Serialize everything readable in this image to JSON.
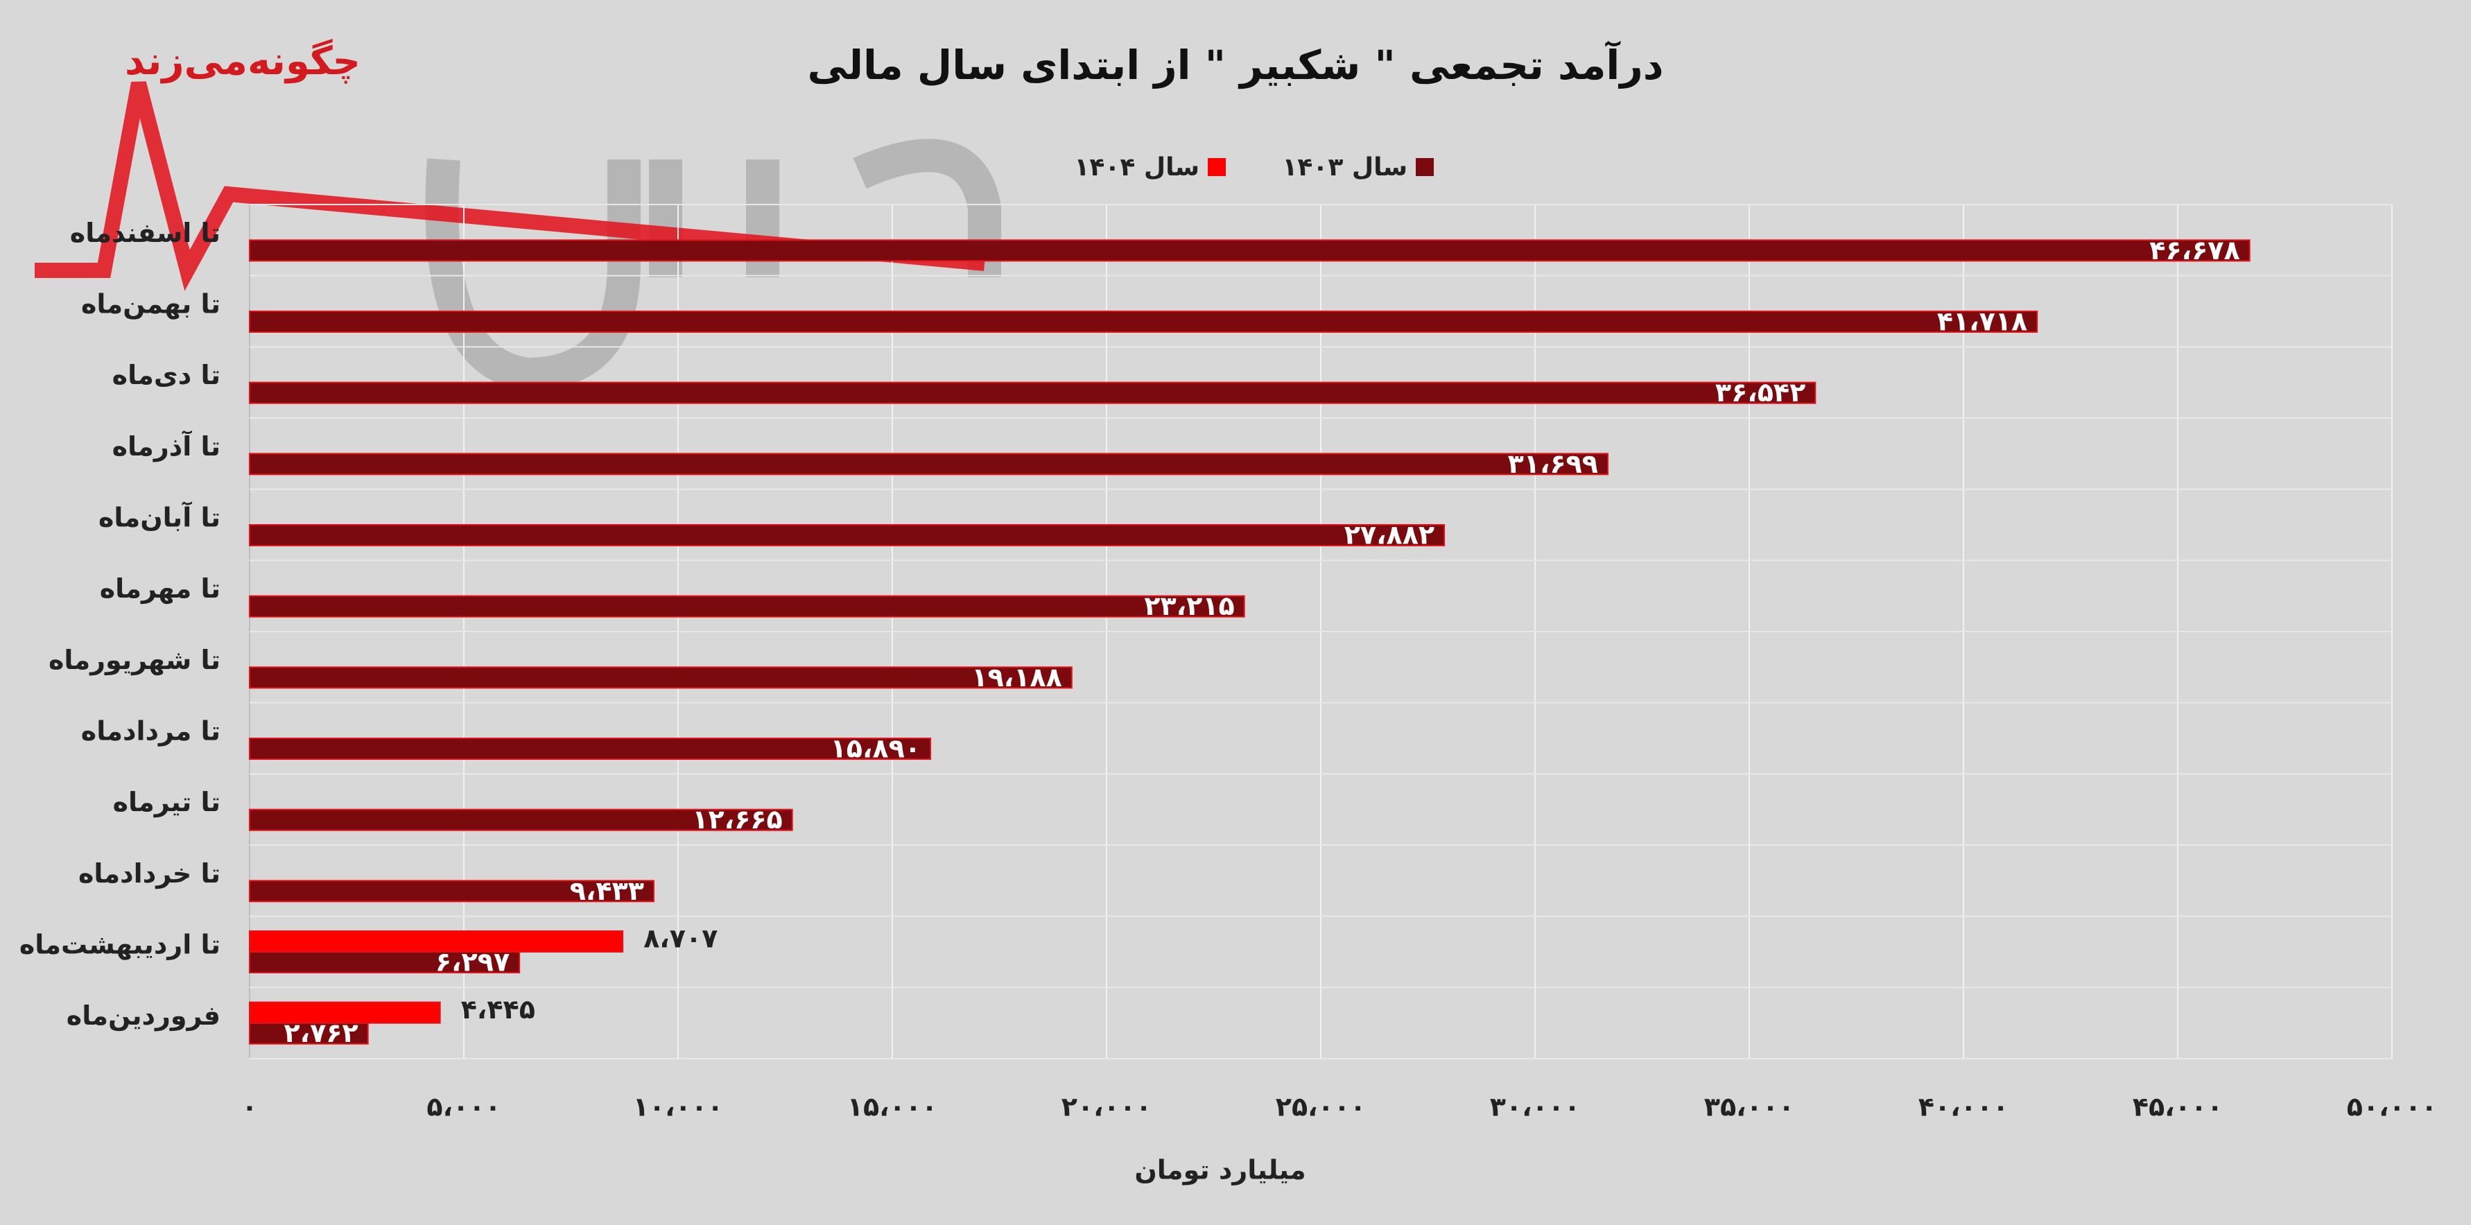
{
  "chart_data": {
    "type": "bar",
    "orientation": "horizontal",
    "title": "درآمد تجمعی \" شکبیر \" از ابتدای سال مالی",
    "watermark": "چگونه‌می‌زند",
    "x_label": "میلیارد تومان",
    "categories": [
      "تا اسفندماه",
      "تا بهمن‌ماه",
      "تا دی‌ماه",
      "تا آذرماه",
      "تا آبان‌ماه",
      "تا مهرماه",
      "تا شهریورماه",
      "تا مردادماه",
      "تا تیرماه",
      "تا خردادماه",
      "تا اردیبهشت‌ماه",
      "فروردین‌ماه"
    ],
    "series": [
      {
        "name": "سال ۱۴۰۳",
        "color": "#7b0a0e",
        "values": [
          46678,
          41718,
          36542,
          31699,
          27882,
          23215,
          19188,
          15890,
          12665,
          9433,
          6297,
          2762
        ],
        "value_labels": [
          "۴۶،۶۷۸",
          "۴۱،۷۱۸",
          "۳۶،۵۴۲",
          "۳۱،۶۹۹",
          "۲۷،۸۸۲",
          "۲۳،۲۱۵",
          "۱۹،۱۸۸",
          "۱۵،۸۹۰",
          "۱۲،۶۶۵",
          "۹،۴۳۳",
          "۶،۲۹۷",
          "۲،۷۶۲"
        ]
      },
      {
        "name": "سال ۱۴۰۴",
        "color": "#ff0000",
        "values": [
          null,
          null,
          null,
          null,
          null,
          null,
          null,
          null,
          null,
          null,
          8707,
          4445
        ],
        "value_labels": [
          null,
          null,
          null,
          null,
          null,
          null,
          null,
          null,
          null,
          null,
          "۸،۷۰۷",
          "۴،۴۴۵"
        ]
      }
    ],
    "xlim": [
      0,
      50000
    ],
    "xticks": [
      {
        "value": 0,
        "label": "۰"
      },
      {
        "value": 5000,
        "label": "۵،۰۰۰"
      },
      {
        "value": 10000,
        "label": "۱۰،۰۰۰"
      },
      {
        "value": 15000,
        "label": "۱۵،۰۰۰"
      },
      {
        "value": 20000,
        "label": "۲۰،۰۰۰"
      },
      {
        "value": 25000,
        "label": "۲۵،۰۰۰"
      },
      {
        "value": 30000,
        "label": "۳۰،۰۰۰"
      },
      {
        "value": 35000,
        "label": "۳۵،۰۰۰"
      },
      {
        "value": 40000,
        "label": "۴۰،۰۰۰"
      },
      {
        "value": 45000,
        "label": "۴۵،۰۰۰"
      },
      {
        "value": 50000,
        "label": "۵۰،۰۰۰"
      }
    ],
    "grid": true,
    "legend": "top"
  }
}
